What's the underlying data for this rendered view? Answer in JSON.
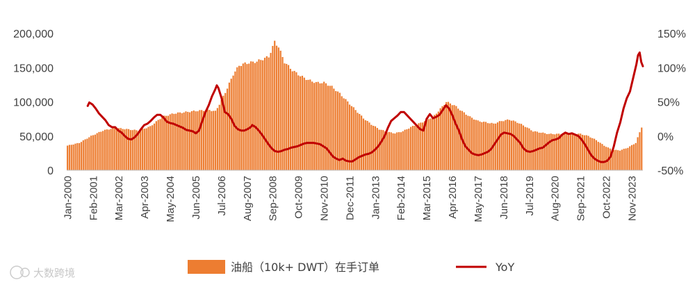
{
  "chart_data": {
    "type": "bar+line",
    "title": "",
    "x_start": "Jan-2000",
    "x_end": "Apr-2024",
    "x_tick_labels": [
      "Jan-2000",
      "Feb-2001",
      "Mar-2002",
      "Apr-2003",
      "May-2004",
      "Jun-2005",
      "Jul-2006",
      "Aug-2007",
      "Sep-2008",
      "Oct-2009",
      "Nov-2010",
      "Dec-2011",
      "Jan-2013",
      "Feb-2014",
      "Mar-2015",
      "Apr-2016",
      "May-2017",
      "Jun-2018",
      "Jul-2019",
      "Aug-2020",
      "Sep-2021",
      "Oct-2022",
      "Nov-2023"
    ],
    "y_left": {
      "min": 0,
      "max": 200000,
      "ticks": [
        "0",
        "50,000",
        "100,000",
        "150,000",
        "200,000"
      ]
    },
    "y_right": {
      "min": -50,
      "max": 150,
      "unit": "%",
      "ticks": [
        "-50%",
        "0%",
        "50%",
        "100%",
        "150%"
      ]
    },
    "series": [
      {
        "name": "油船（10k+ DWT）在手订单",
        "type": "bar",
        "axis": "left",
        "color": "#ED7D31",
        "keyframes": [
          [
            0,
            36000
          ],
          [
            6,
            40000
          ],
          [
            12,
            50000
          ],
          [
            18,
            58000
          ],
          [
            24,
            62000
          ],
          [
            30,
            60000
          ],
          [
            36,
            58000
          ],
          [
            42,
            64000
          ],
          [
            48,
            78000
          ],
          [
            54,
            83000
          ],
          [
            60,
            85000
          ],
          [
            66,
            87000
          ],
          [
            72,
            88000
          ],
          [
            75,
            86000
          ],
          [
            78,
            102000
          ],
          [
            81,
            120000
          ],
          [
            84,
            140000
          ],
          [
            87,
            153000
          ],
          [
            90,
            156000
          ],
          [
            96,
            159000
          ],
          [
            102,
            166000
          ],
          [
            104,
            180000
          ],
          [
            105,
            188000
          ],
          [
            107,
            180000
          ],
          [
            110,
            158000
          ],
          [
            114,
            146000
          ],
          [
            118,
            138000
          ],
          [
            122,
            132000
          ],
          [
            126,
            128000
          ],
          [
            130,
            128000
          ],
          [
            134,
            122000
          ],
          [
            138,
            112000
          ],
          [
            142,
            100000
          ],
          [
            146,
            88000
          ],
          [
            150,
            76000
          ],
          [
            154,
            67000
          ],
          [
            158,
            60000
          ],
          [
            162,
            56000
          ],
          [
            166,
            54000
          ],
          [
            170,
            57000
          ],
          [
            174,
            63000
          ],
          [
            178,
            68000
          ],
          [
            182,
            73000
          ],
          [
            186,
            80000
          ],
          [
            190,
            93000
          ],
          [
            192,
            100000
          ],
          [
            196,
            95000
          ],
          [
            200,
            86000
          ],
          [
            204,
            78000
          ],
          [
            208,
            72000
          ],
          [
            212,
            70000
          ],
          [
            216,
            68000
          ],
          [
            220,
            72000
          ],
          [
            224,
            74000
          ],
          [
            228,
            70000
          ],
          [
            232,
            64000
          ],
          [
            236,
            57000
          ],
          [
            240,
            55000
          ],
          [
            244,
            53000
          ],
          [
            248,
            53000
          ],
          [
            252,
            53000
          ],
          [
            256,
            54000
          ],
          [
            260,
            53000
          ],
          [
            264,
            50000
          ],
          [
            268,
            44000
          ],
          [
            272,
            36000
          ],
          [
            276,
            30000
          ],
          [
            280,
            29000
          ],
          [
            284,
            33000
          ],
          [
            288,
            40000
          ],
          [
            292,
            50000
          ],
          [
            296,
            62000
          ],
          [
            291.5,
            67000
          ]
        ]
      },
      {
        "name": "YoY",
        "type": "line",
        "axis": "right",
        "color": "#C00000",
        "points": [
          [
            13,
            44
          ],
          [
            14,
            49
          ],
          [
            16,
            46
          ],
          [
            18,
            40
          ],
          [
            20,
            33
          ],
          [
            22,
            28
          ],
          [
            24,
            23
          ],
          [
            26,
            16
          ],
          [
            28,
            13
          ],
          [
            30,
            13
          ],
          [
            32,
            8
          ],
          [
            34,
            5
          ],
          [
            36,
            0
          ],
          [
            38,
            -4
          ],
          [
            40,
            -5
          ],
          [
            42,
            -2
          ],
          [
            44,
            3
          ],
          [
            46,
            10
          ],
          [
            48,
            16
          ],
          [
            50,
            18
          ],
          [
            52,
            22
          ],
          [
            54,
            27
          ],
          [
            56,
            31
          ],
          [
            58,
            31
          ],
          [
            60,
            27
          ],
          [
            62,
            21
          ],
          [
            64,
            19
          ],
          [
            66,
            18
          ],
          [
            68,
            16
          ],
          [
            70,
            14
          ],
          [
            72,
            12
          ],
          [
            74,
            9
          ],
          [
            76,
            8
          ],
          [
            78,
            7
          ],
          [
            80,
            4
          ],
          [
            82,
            8
          ],
          [
            84,
            22
          ],
          [
            86,
            35
          ],
          [
            88,
            45
          ],
          [
            90,
            58
          ],
          [
            92,
            68
          ],
          [
            93,
            74
          ],
          [
            94,
            70
          ],
          [
            96,
            55
          ],
          [
            98,
            35
          ],
          [
            100,
            32
          ],
          [
            102,
            25
          ],
          [
            104,
            15
          ],
          [
            106,
            10
          ],
          [
            108,
            8
          ],
          [
            110,
            8
          ],
          [
            112,
            10
          ],
          [
            114,
            13
          ],
          [
            115,
            16
          ],
          [
            117,
            13
          ],
          [
            119,
            8
          ],
          [
            121,
            2
          ],
          [
            123,
            -5
          ],
          [
            125,
            -12
          ],
          [
            127,
            -18
          ],
          [
            129,
            -22
          ],
          [
            131,
            -23
          ],
          [
            133,
            -22
          ],
          [
            135,
            -20
          ],
          [
            137,
            -19
          ],
          [
            139,
            -17
          ],
          [
            141,
            -16
          ],
          [
            143,
            -15
          ],
          [
            145,
            -13
          ],
          [
            147,
            -11
          ],
          [
            149,
            -10
          ],
          [
            151,
            -10
          ],
          [
            153,
            -10
          ],
          [
            155,
            -11
          ],
          [
            157,
            -12
          ],
          [
            159,
            -15
          ],
          [
            161,
            -18
          ],
          [
            163,
            -24
          ],
          [
            165,
            -30
          ],
          [
            167,
            -33
          ],
          [
            169,
            -35
          ],
          [
            171,
            -33
          ],
          [
            173,
            -36
          ],
          [
            175,
            -37
          ],
          [
            177,
            -37
          ],
          [
            179,
            -34
          ],
          [
            181,
            -31
          ],
          [
            183,
            -29
          ],
          [
            185,
            -27
          ],
          [
            187,
            -26
          ],
          [
            189,
            -24
          ],
          [
            191,
            -20
          ],
          [
            193,
            -15
          ],
          [
            195,
            -8
          ],
          [
            197,
            0
          ],
          [
            199,
            12
          ],
          [
            201,
            22
          ],
          [
            203,
            26
          ],
          [
            205,
            30
          ],
          [
            207,
            35
          ],
          [
            209,
            35
          ],
          [
            211,
            30
          ],
          [
            213,
            25
          ],
          [
            215,
            20
          ],
          [
            217,
            15
          ],
          [
            219,
            10
          ],
          [
            221,
            8
          ],
          [
            223,
            25
          ],
          [
            225,
            32
          ],
          [
            227,
            26
          ],
          [
            229,
            28
          ],
          [
            231,
            31
          ],
          [
            233,
            38
          ],
          [
            235,
            45
          ],
          [
            237,
            40
          ],
          [
            239,
            30
          ],
          [
            241,
            18
          ],
          [
            243,
            8
          ],
          [
            245,
            -5
          ],
          [
            247,
            -15
          ],
          [
            249,
            -20
          ],
          [
            251,
            -25
          ],
          [
            253,
            -27
          ],
          [
            255,
            -28
          ],
          [
            257,
            -27
          ],
          [
            259,
            -25
          ],
          [
            261,
            -23
          ],
          [
            263,
            -19
          ],
          [
            265,
            -12
          ],
          [
            267,
            -5
          ],
          [
            269,
            2
          ],
          [
            271,
            5
          ],
          [
            273,
            4
          ],
          [
            275,
            3
          ],
          [
            277,
            0
          ],
          [
            279,
            -5
          ],
          [
            281,
            -10
          ],
          [
            283,
            -18
          ],
          [
            285,
            -22
          ],
          [
            287,
            -23
          ],
          [
            289,
            -22
          ],
          [
            291,
            -20
          ],
          [
            293,
            -18
          ],
          [
            295,
            -17
          ],
          [
            297,
            -13
          ],
          [
            299,
            -9
          ],
          [
            301,
            -6
          ],
          [
            303,
            -5
          ],
          [
            305,
            -3
          ],
          [
            307,
            2
          ],
          [
            309,
            5
          ],
          [
            311,
            3
          ],
          [
            313,
            4
          ],
          [
            315,
            2
          ],
          [
            317,
            0
          ],
          [
            319,
            -5
          ],
          [
            321,
            -12
          ],
          [
            323,
            -20
          ],
          [
            325,
            -28
          ],
          [
            327,
            -33
          ],
          [
            329,
            -36
          ],
          [
            331,
            -38
          ],
          [
            333,
            -38
          ],
          [
            335,
            -36
          ],
          [
            337,
            -30
          ],
          [
            339,
            -15
          ],
          [
            341,
            5
          ],
          [
            343,
            20
          ],
          [
            345,
            40
          ],
          [
            347,
            55
          ],
          [
            349,
            65
          ],
          [
            351,
            85
          ],
          [
            353,
            105
          ],
          [
            354,
            118
          ],
          [
            355,
            122
          ],
          [
            356,
            108
          ],
          [
            357,
            102
          ]
        ]
      }
    ],
    "legend": {
      "placement": "bottom-center"
    }
  },
  "legend": {
    "bar_label": "油船（10k+ DWT）在手订单",
    "line_label": "YoY"
  },
  "watermark": "大数跨境"
}
